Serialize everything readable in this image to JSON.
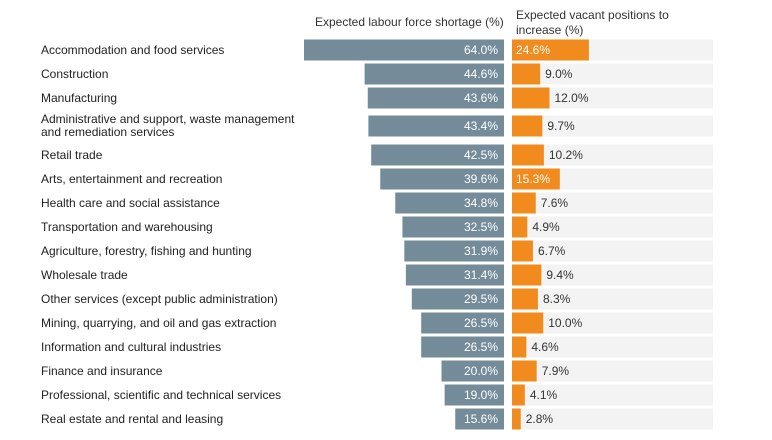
{
  "chart_data": {
    "type": "bar",
    "headers": {
      "left": "Expected labour force shortage (%)",
      "right": "Expected vacant positions to increase (%)"
    },
    "categories": [
      "Accommodation and food services",
      "Construction",
      "Manufacturing",
      "Administrative and support, waste management and remediation services",
      "Retail trade",
      "Arts, entertainment and recreation",
      "Health care and social assistance",
      "Transportation and warehousing",
      "Agriculture, forestry, fishing and hunting",
      "Wholesale trade",
      "Other services (except public administration)",
      "Mining, quarrying, and oil and gas extraction",
      "Information and cultural industries",
      "Finance and insurance",
      "Professional, scientific and technical services",
      "Real estate and rental and leasing"
    ],
    "series": [
      {
        "values": [
          64.0,
          44.6,
          43.6,
          43.4,
          42.5,
          39.6,
          34.8,
          32.5,
          31.9,
          31.4,
          29.5,
          26.5,
          26.5,
          20.0,
          19.0,
          15.6
        ],
        "labels": [
          "64.0%",
          "44.6%",
          "43.6%",
          "43.4%",
          "42.5%",
          "39.6%",
          "34.8%",
          "32.5%",
          "31.9%",
          "31.4%",
          "29.5%",
          "26.5%",
          "26.5%",
          "20.0%",
          "19.0%",
          "15.6%"
        ]
      },
      {
        "values": [
          24.6,
          9.0,
          12.0,
          9.7,
          10.2,
          15.3,
          7.6,
          4.9,
          6.7,
          9.4,
          8.3,
          10.0,
          4.6,
          7.9,
          4.1,
          2.8
        ],
        "labels": [
          "24.6%",
          "9.0%",
          "12.0%",
          "9.7%",
          "10.2%",
          "15.3%",
          "7.6%",
          "4.9%",
          "6.7%",
          "9.4%",
          "8.3%",
          "10.0%",
          "4.6%",
          "7.9%",
          "4.1%",
          "2.8%"
        ]
      }
    ],
    "xlim_left": [
      0,
      64.0
    ],
    "xlim_right": [
      0,
      64.0
    ],
    "colors": {
      "left_bar": "#748c9a",
      "right_bar": "#f28b1e",
      "track": "#f3f3f3"
    },
    "grid": false,
    "legend": "none"
  }
}
